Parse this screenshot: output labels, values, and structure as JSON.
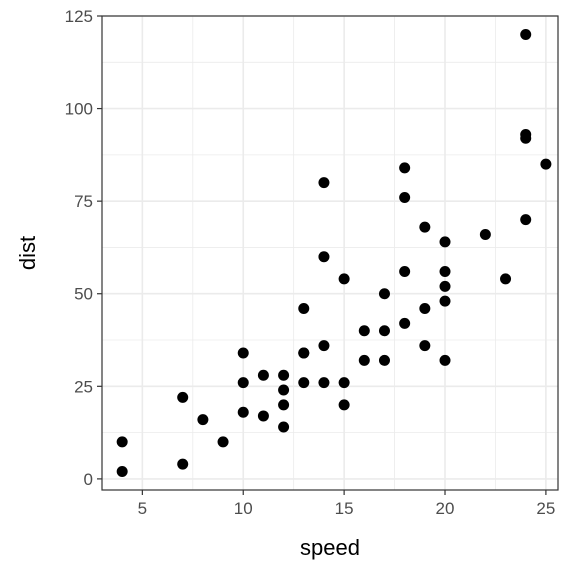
{
  "chart_data": {
    "type": "scatter",
    "xlabel": "speed",
    "ylabel": "dist",
    "xlim": [
      3,
      25.6
    ],
    "ylim": [
      -3,
      125
    ],
    "xticks": [
      5,
      10,
      15,
      20,
      25
    ],
    "yticks": [
      0,
      25,
      50,
      75,
      100,
      125
    ],
    "xminor": [
      7.5,
      12.5,
      17.5,
      22.5
    ],
    "yminor": [
      12.5,
      37.5,
      62.5,
      87.5,
      112.5
    ],
    "grid": true,
    "colors": {
      "point": "#000000",
      "grid": "#ebebeb",
      "border": "#333333",
      "background": "#ffffff"
    },
    "points": [
      [
        4,
        2
      ],
      [
        4,
        10
      ],
      [
        7,
        4
      ],
      [
        7,
        22
      ],
      [
        8,
        16
      ],
      [
        9,
        10
      ],
      [
        10,
        18
      ],
      [
        10,
        26
      ],
      [
        10,
        34
      ],
      [
        11,
        17
      ],
      [
        11,
        28
      ],
      [
        12,
        14
      ],
      [
        12,
        20
      ],
      [
        12,
        24
      ],
      [
        12,
        28
      ],
      [
        13,
        26
      ],
      [
        13,
        34
      ],
      [
        13,
        34
      ],
      [
        13,
        46
      ],
      [
        14,
        26
      ],
      [
        14,
        36
      ],
      [
        14,
        60
      ],
      [
        14,
        80
      ],
      [
        15,
        20
      ],
      [
        15,
        26
      ],
      [
        15,
        54
      ],
      [
        16,
        32
      ],
      [
        16,
        40
      ],
      [
        17,
        32
      ],
      [
        17,
        40
      ],
      [
        17,
        50
      ],
      [
        18,
        42
      ],
      [
        18,
        56
      ],
      [
        18,
        76
      ],
      [
        18,
        84
      ],
      [
        19,
        36
      ],
      [
        19,
        46
      ],
      [
        19,
        68
      ],
      [
        20,
        32
      ],
      [
        20,
        48
      ],
      [
        20,
        52
      ],
      [
        20,
        56
      ],
      [
        20,
        64
      ],
      [
        22,
        66
      ],
      [
        23,
        54
      ],
      [
        24,
        70
      ],
      [
        24,
        92
      ],
      [
        24,
        93
      ],
      [
        24,
        120
      ],
      [
        25,
        85
      ]
    ]
  }
}
